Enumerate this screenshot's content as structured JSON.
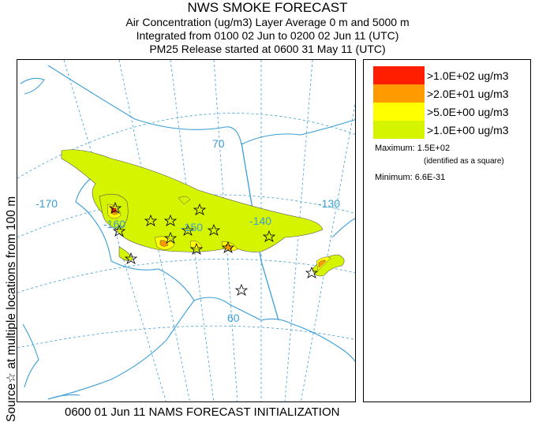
{
  "header": {
    "title": "NWS SMOKE FORECAST",
    "line2": "Air Concentration (ug/m3) Layer Average    0 m and  5000 m",
    "line3": "Integrated from 0100 02 Jun to 0200 02 Jun 11 (UTC)",
    "line4": "PM25 Release started at 0600 31 May 11 (UTC)"
  },
  "side_label": "Source☆   at multiple locations    from    100 m",
  "map": {
    "lat_labels": [
      "70",
      "60"
    ],
    "lon_labels": [
      "-170",
      "-160",
      "-150",
      "-140",
      "-130"
    ],
    "colors": {
      "coast": "#3b9fd6",
      "grid": "#3b9fd6"
    }
  },
  "legend": {
    "items": [
      {
        "label": ">1.0E+02 ug/m3",
        "color": "#ff1f00"
      },
      {
        "label": ">2.0E+01 ug/m3",
        "color": "#ff9a00"
      },
      {
        "label": ">5.0E+00 ug/m3",
        "color": "#ffff00"
      },
      {
        "label": ">1.0E+00 ug/m3",
        "color": "#d4f400"
      }
    ],
    "maximum": "Maximum: 1.5E+02",
    "maximum_note": "(identified as a square)",
    "minimum": "Minimum: 6.6E-31"
  },
  "footer": "0600 01 Jun 11 NAMS FORECAST INITIALIZATION"
}
